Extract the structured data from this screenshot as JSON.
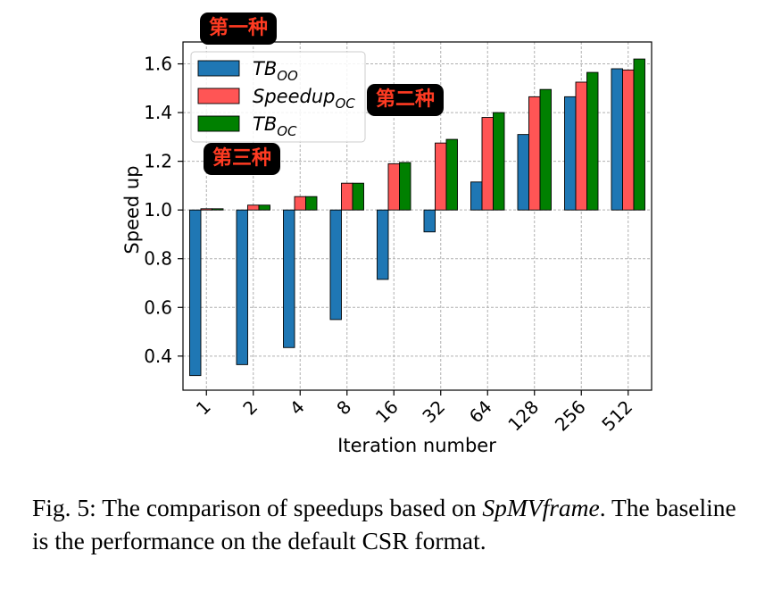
{
  "chart_data": {
    "type": "bar",
    "categories": [
      "1",
      "2",
      "4",
      "8",
      "16",
      "32",
      "64",
      "128",
      "256",
      "512"
    ],
    "series": [
      {
        "name": "TB_OO",
        "name_main": "TB",
        "name_sub": "OO",
        "color": "#1f77b4",
        "values": [
          0.32,
          0.365,
          0.435,
          0.55,
          0.715,
          0.91,
          1.115,
          1.31,
          1.465,
          1.58
        ]
      },
      {
        "name": "Speedup_OC",
        "name_main": "Speedup",
        "name_sub": "OC",
        "color": "#ff5555",
        "values": [
          1.005,
          1.02,
          1.055,
          1.11,
          1.19,
          1.275,
          1.38,
          1.465,
          1.525,
          1.575
        ]
      },
      {
        "name": "TB_OC",
        "name_main": "TB",
        "name_sub": "OC",
        "color": "#008000",
        "values": [
          1.005,
          1.02,
          1.055,
          1.11,
          1.195,
          1.29,
          1.4,
          1.495,
          1.565,
          1.62
        ]
      }
    ],
    "baseline": 1.0,
    "xlabel": "Iteration number",
    "ylabel": "Speed up",
    "ylim": [
      0.26,
      1.69
    ],
    "yticks": [
      "0.4",
      "0.6",
      "0.8",
      "1.0",
      "1.2",
      "1.4",
      "1.6"
    ],
    "grid": true,
    "legend_position": "top-left"
  },
  "annotations": [
    "第一种",
    "第二种",
    "第三种"
  ],
  "caption": {
    "prefix": "Fig. 5: The comparison of speedups based on ",
    "emphasis": "SpMVframe",
    "suffix": ". The baseline is the performance on the default CSR format."
  }
}
